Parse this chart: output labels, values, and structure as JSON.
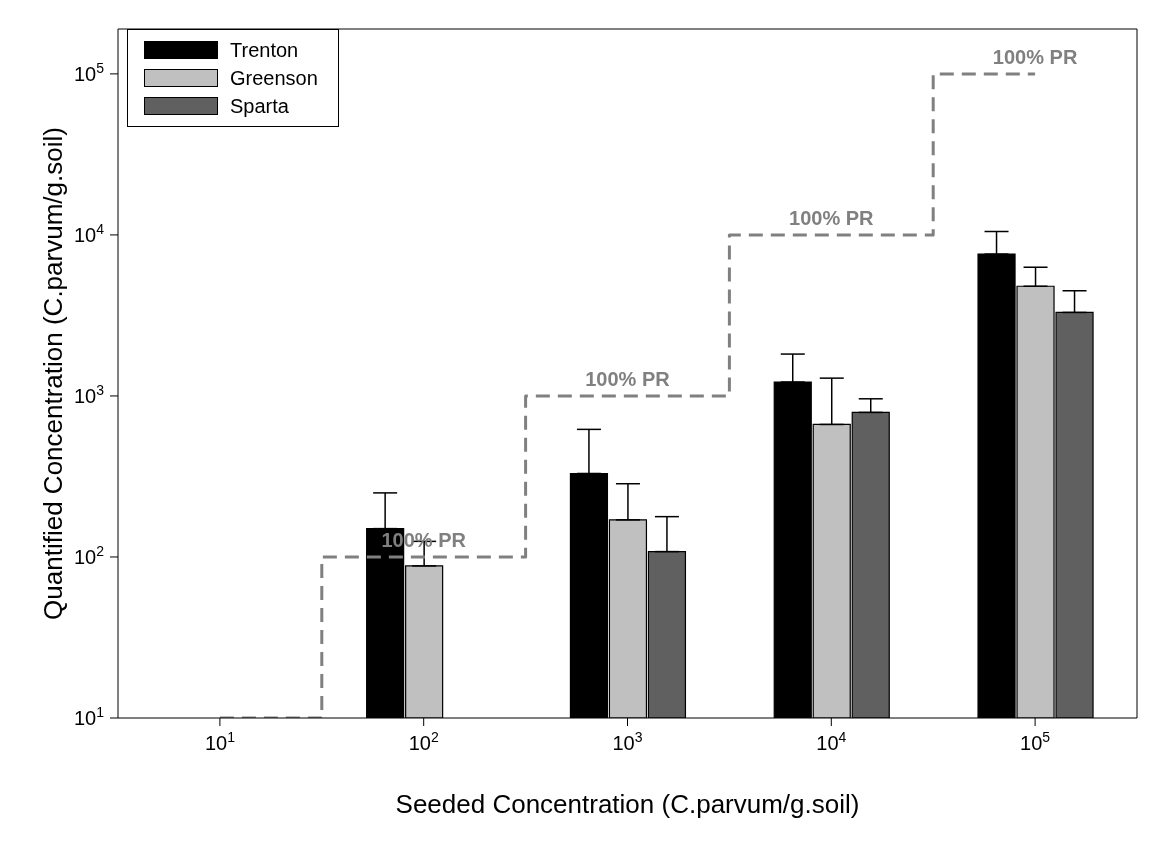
{
  "chart_data": {
    "type": "bar",
    "xlabel": "Seeded Concentration (C.parvum/g.soil)",
    "ylabel": "Quantified Concentration (C.parvum/g.soil)",
    "categories": [
      "10$^{1}$",
      "10$^{2}$",
      "10$^{3}$",
      "10$^{4}$",
      "10$^{5}$"
    ],
    "series": [
      {
        "name": "Trenton",
        "color": "#000000",
        "values": [
          null,
          150,
          330,
          1220,
          7600
        ],
        "errors": [
          null,
          [
            150,
            250
          ],
          [
            330,
            620
          ],
          [
            1220,
            1820
          ],
          [
            7600,
            10500
          ]
        ]
      },
      {
        "name": "Greenson",
        "color": "#c0c0c0",
        "values": [
          null,
          88,
          170,
          665,
          4800
        ],
        "errors": [
          null,
          [
            88,
            125
          ],
          [
            170,
            285
          ],
          [
            665,
            1290
          ],
          [
            4800,
            6300
          ]
        ]
      },
      {
        "name": "Sparta",
        "color": "#606060",
        "values": [
          null,
          null,
          108,
          790,
          3300
        ],
        "errors": [
          null,
          null,
          [
            108,
            178
          ],
          [
            790,
            960
          ],
          [
            3300,
            4500
          ]
        ]
      },
      {
        "type": "step",
        "color": "#808080",
        "line_style": "dashed",
        "values": [
          10,
          100,
          1000,
          10000,
          100000
        ]
      }
    ],
    "log": "y",
    "ylim": [
      10,
      190000
    ],
    "yticks": [
      {
        "value": 10,
        "label": "10$^{1}$"
      },
      {
        "value": 100,
        "label": "10$^{2}$"
      },
      {
        "value": 1000,
        "label": "10$^{3}$"
      },
      {
        "value": 10000,
        "label": "10$^{4}$"
      },
      {
        "value": 100000,
        "label": "10$^{5}$"
      }
    ],
    "grid": false,
    "legend": "top left",
    "annotations": [
      {
        "text": "100% PR",
        "x": "10$^{2}$",
        "y": 100
      },
      {
        "text": "100% PR",
        "x": "10$^{3}$",
        "y": 1000
      },
      {
        "text": "100% PR",
        "x": "10$^{4}$",
        "y": 10000
      },
      {
        "text": "100% PR",
        "x": "10$^{5}$",
        "y": 100000
      }
    ]
  }
}
